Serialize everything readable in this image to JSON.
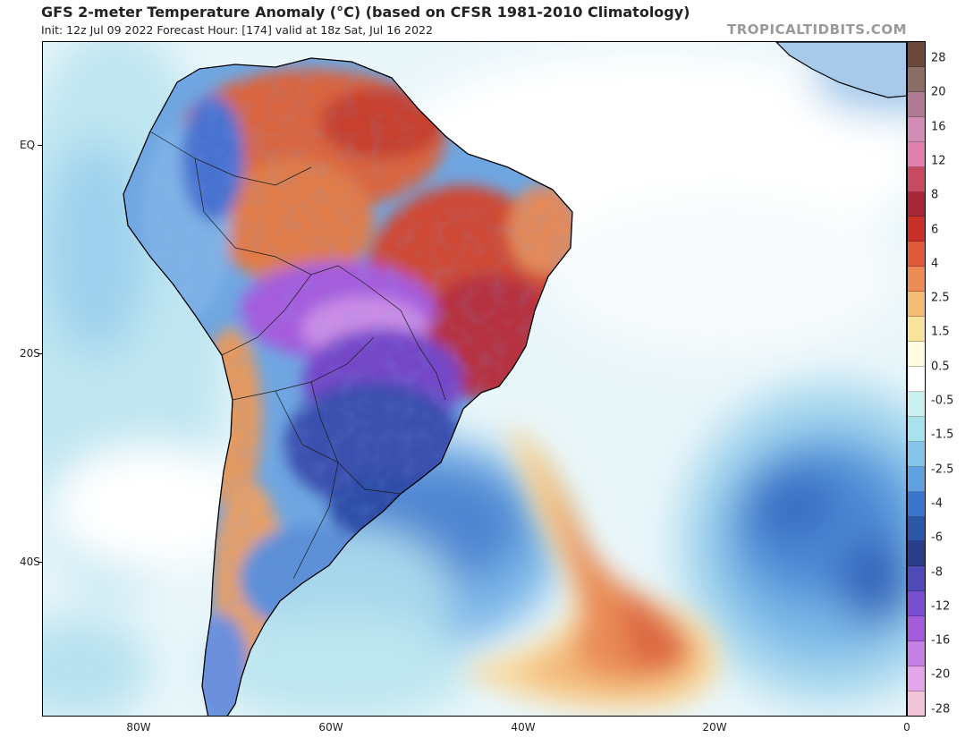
{
  "header": {
    "title": "GFS 2-meter Temperature Anomaly (°C) (based on CFSR 1981-2010 Climatology)",
    "subtitle": "Init: 12z Jul 09 2022   Forecast Hour: [174]   valid at 18z Sat, Jul 16 2022",
    "brand": "TROPICALTIDBITS.COM"
  },
  "axes": {
    "lat_labels": [
      "EQ",
      "20S",
      "40S"
    ],
    "lon_labels": [
      "80W",
      "60W",
      "40W",
      "20W",
      "0"
    ]
  },
  "colorbar": {
    "labels": [
      "28",
      "20",
      "16",
      "12",
      "8",
      "6",
      "4",
      "2.5",
      "1.5",
      "0.5",
      "-0.5",
      "-1.5",
      "-2.5",
      "-4",
      "-6",
      "-8",
      "-12",
      "-16",
      "-20",
      "-28"
    ],
    "colors": [
      "#6b4a3a",
      "#8c6d66",
      "#b07c93",
      "#d28db5",
      "#e37fae",
      "#c74a63",
      "#a8283a",
      "#c9302a",
      "#de5a3a",
      "#eb8a53",
      "#f3be73",
      "#f8e39c",
      "#fffbe0",
      "#ffffff",
      "#ccf0f0",
      "#a8e2ec",
      "#84c6ea",
      "#5ea0e0",
      "#3a76cc",
      "#2c57a8",
      "#2a3e8e",
      "#4f4cb8",
      "#7a4ed0",
      "#a25cdc",
      "#c67fe4",
      "#e2a6e8",
      "#f2c6d8"
    ]
  },
  "map": {
    "background": "#eef8fb",
    "land_color": "#000000"
  }
}
